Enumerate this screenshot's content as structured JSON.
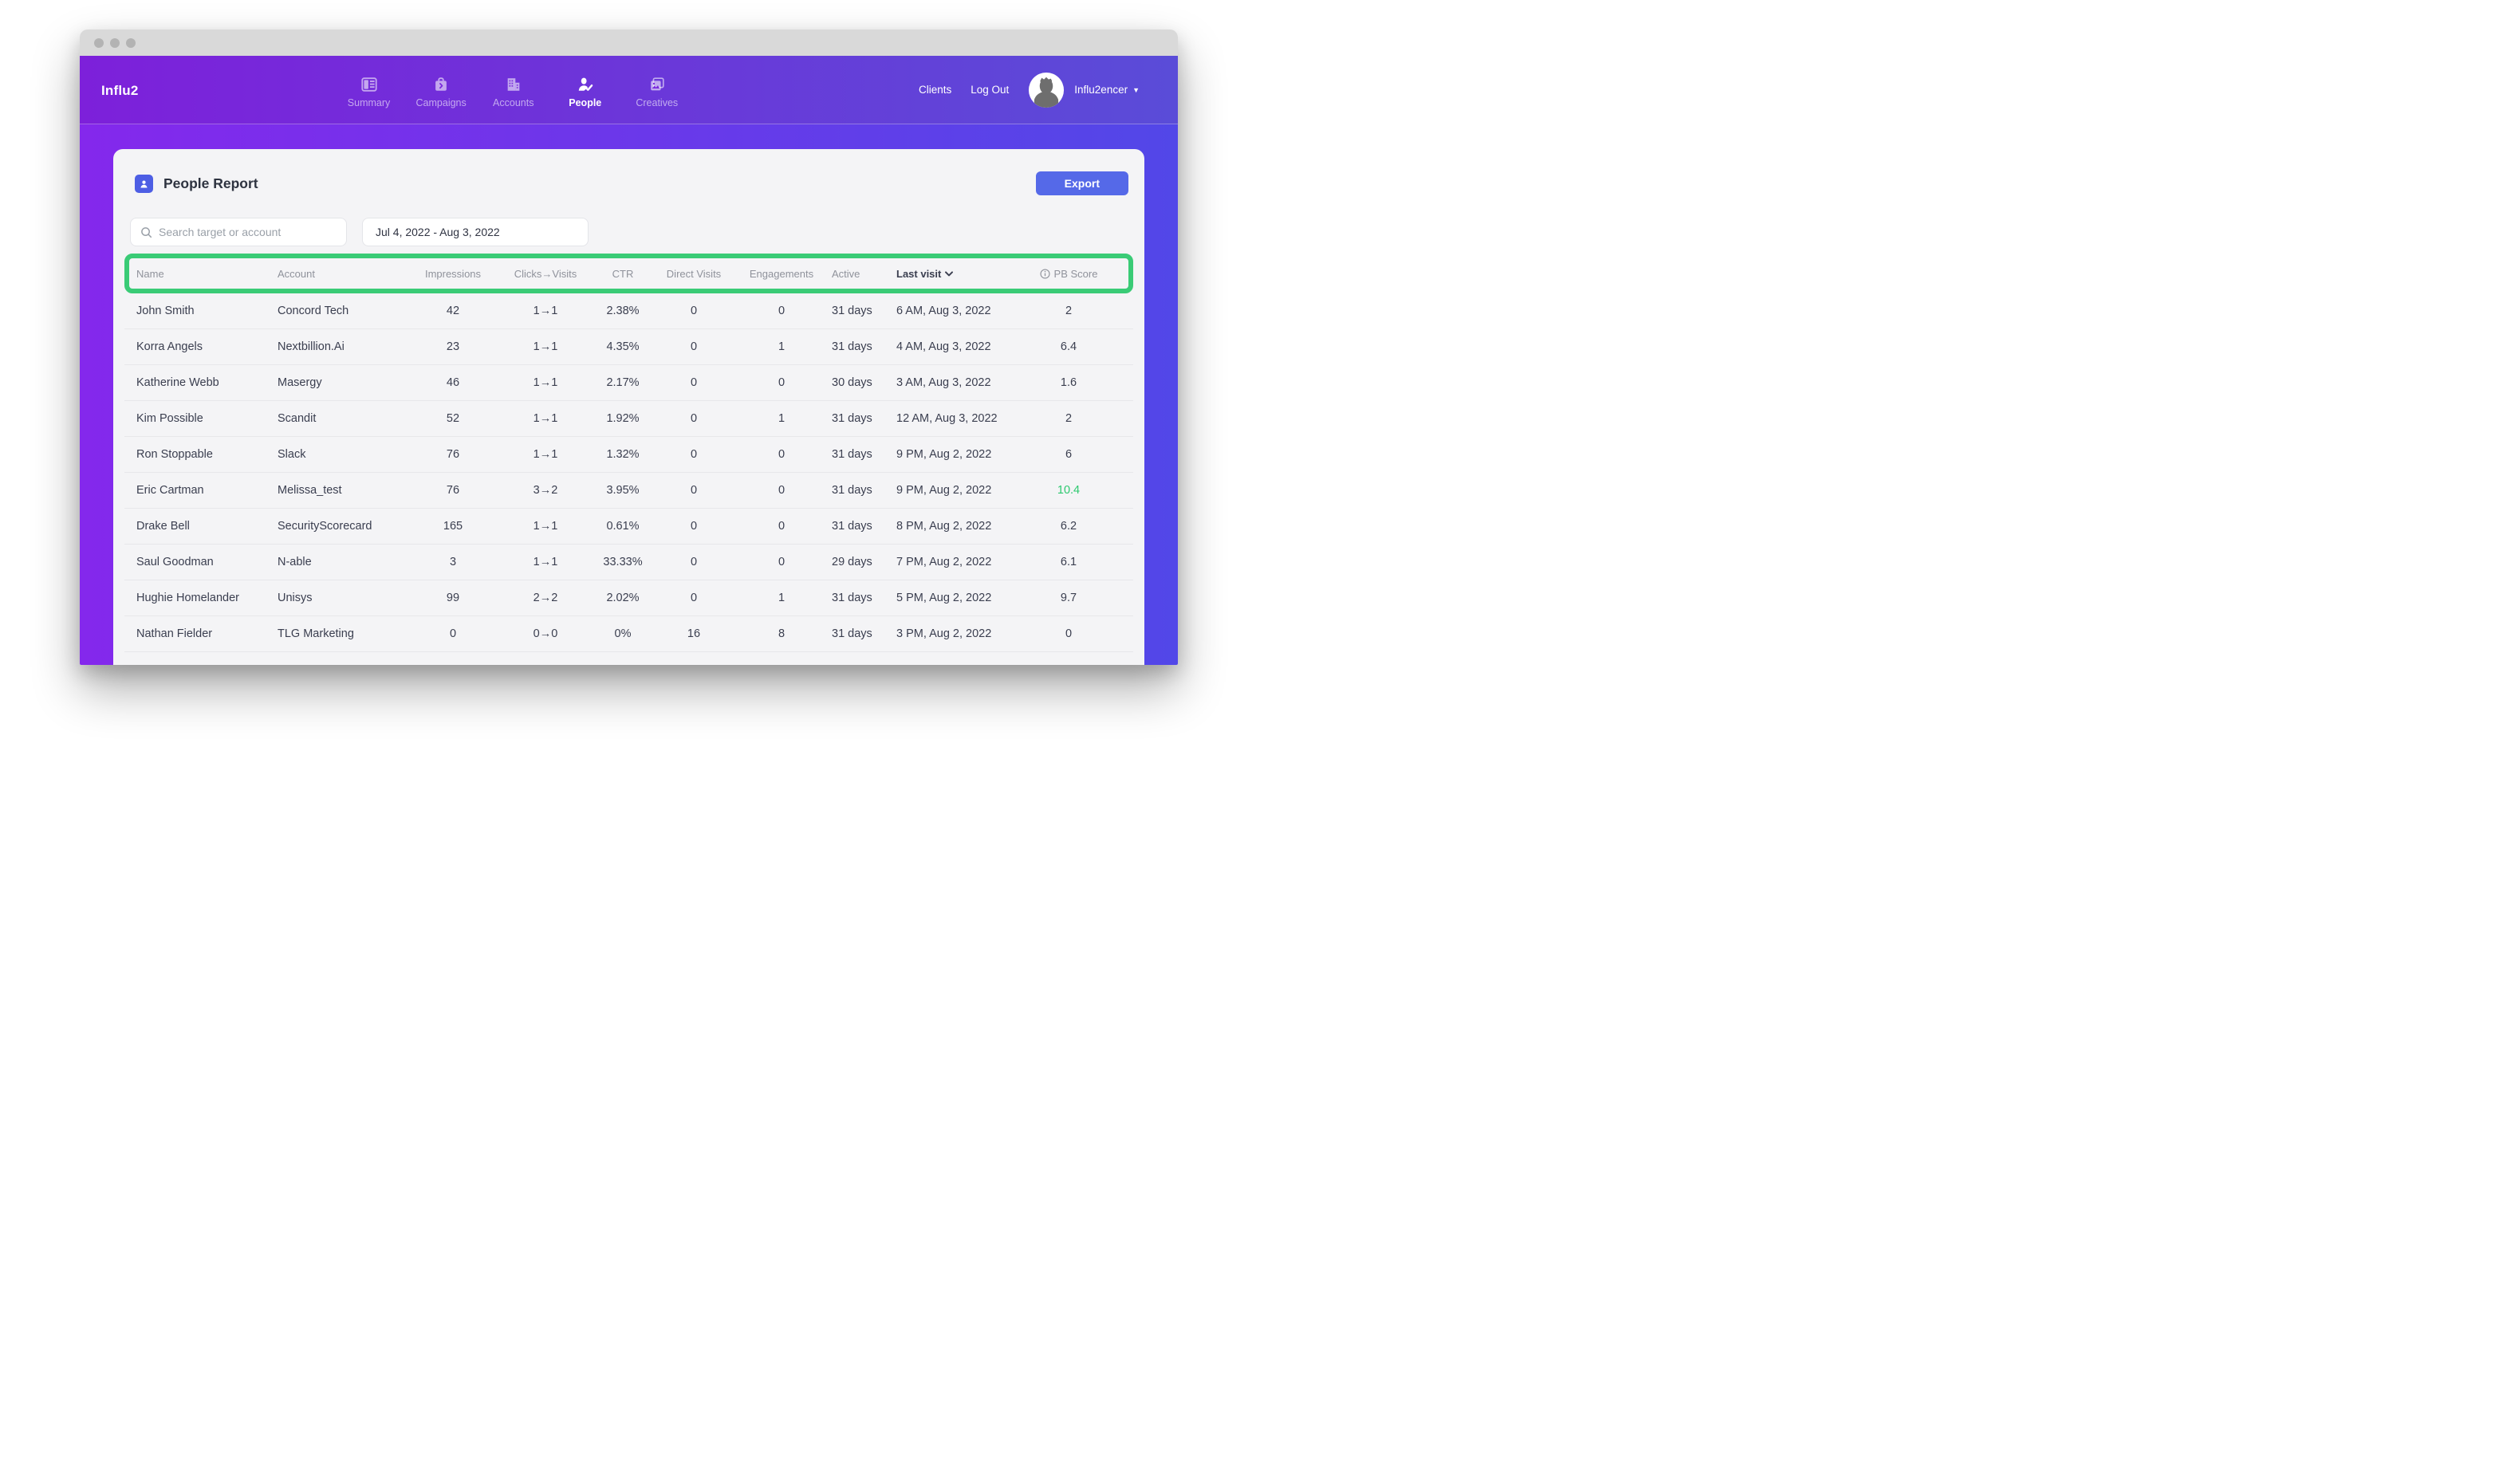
{
  "brand": {
    "logo": "Influ2"
  },
  "nav": {
    "items": [
      {
        "label": "Summary",
        "icon": "summary-icon",
        "active": false
      },
      {
        "label": "Campaigns",
        "icon": "campaigns-icon",
        "active": false
      },
      {
        "label": "Accounts",
        "icon": "accounts-icon",
        "active": false
      },
      {
        "label": "People",
        "icon": "people-icon",
        "active": true
      },
      {
        "label": "Creatives",
        "icon": "creatives-icon",
        "active": false
      }
    ],
    "right": {
      "clients": "Clients",
      "logout": "Log Out",
      "user": "Influ2encer"
    }
  },
  "report": {
    "title": "People Report",
    "export_label": "Export",
    "search_placeholder": "Search target or account",
    "date_range": "Jul 4, 2022 - Aug 3, 2022"
  },
  "table": {
    "columns": [
      {
        "label": "Name",
        "align": "left"
      },
      {
        "label": "Account",
        "align": "left"
      },
      {
        "label": "Impressions",
        "align": "center"
      },
      {
        "label": "Clicks→Visits",
        "align": "center"
      },
      {
        "label": "CTR",
        "align": "center"
      },
      {
        "label": "Direct Visits",
        "align": "center"
      },
      {
        "label": "Engagements",
        "align": "center"
      },
      {
        "label": "Active",
        "align": "left"
      },
      {
        "label": "Last visit",
        "align": "left",
        "sorted": true
      },
      {
        "label": "PB Score",
        "align": "center",
        "info": true
      }
    ],
    "rows": [
      {
        "cells": [
          "John Smith",
          "Concord Tech",
          "42",
          "1→1",
          "2.38%",
          "0",
          "0",
          "31 days",
          "6 AM, Aug 3, 2022",
          "2"
        ],
        "pb_green": false
      },
      {
        "cells": [
          "Korra Angels",
          "Nextbillion.Ai",
          "23",
          "1→1",
          "4.35%",
          "0",
          "1",
          "31 days",
          "4 AM, Aug 3, 2022",
          "6.4"
        ],
        "pb_green": false
      },
      {
        "cells": [
          "Katherine Webb",
          "Masergy",
          "46",
          "1→1",
          "2.17%",
          "0",
          "0",
          "30 days",
          "3 AM, Aug 3, 2022",
          "1.6"
        ],
        "pb_green": false
      },
      {
        "cells": [
          "Kim Possible",
          "Scandit",
          "52",
          "1→1",
          "1.92%",
          "0",
          "1",
          "31 days",
          "12 AM, Aug 3, 2022",
          "2"
        ],
        "pb_green": false
      },
      {
        "cells": [
          "Ron Stoppable",
          "Slack",
          "76",
          "1→1",
          "1.32%",
          "0",
          "0",
          "31 days",
          "9 PM, Aug 2, 2022",
          "6"
        ],
        "pb_green": false
      },
      {
        "cells": [
          "Eric Cartman",
          "Melissa_test",
          "76",
          "3→2",
          "3.95%",
          "0",
          "0",
          "31 days",
          "9 PM, Aug 2, 2022",
          "10.4"
        ],
        "pb_green": true
      },
      {
        "cells": [
          "Drake Bell",
          "SecurityScorecard",
          "165",
          "1→1",
          "0.61%",
          "0",
          "0",
          "31 days",
          "8 PM, Aug 2, 2022",
          "6.2"
        ],
        "pb_green": false
      },
      {
        "cells": [
          "Saul Goodman",
          "N-able",
          "3",
          "1→1",
          "33.33%",
          "0",
          "0",
          "29 days",
          "7 PM, Aug 2, 2022",
          "6.1"
        ],
        "pb_green": false
      },
      {
        "cells": [
          "Hughie Homelander",
          "Unisys",
          "99",
          "2→2",
          "2.02%",
          "0",
          "1",
          "31 days",
          "5 PM, Aug 2, 2022",
          "9.7"
        ],
        "pb_green": false
      },
      {
        "cells": [
          "Nathan Fielder",
          "TLG Marketing",
          "0",
          "0→0",
          "0%",
          "16",
          "8",
          "31 days",
          "3 PM, Aug 2, 2022",
          "0"
        ],
        "pb_green": false
      }
    ]
  },
  "colors": {
    "annotation_green": "#3acb76",
    "pb_highlight_green": "#2dc96f",
    "export_blue": "#5569e8",
    "header_gradient_left": "#7d20da",
    "header_gradient_right": "#5a4cd8"
  }
}
